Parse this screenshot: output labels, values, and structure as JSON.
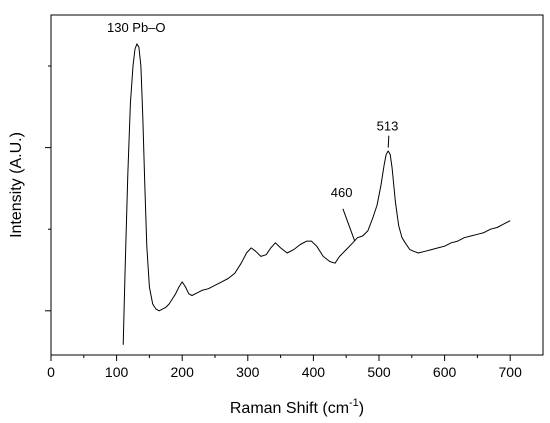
{
  "chart_data": {
    "type": "line",
    "xlabel": "Raman Shift (cm",
    "xlabel_sup": "-1",
    "xlabel_suffix": ")",
    "ylabel": "Intensity (A.U.)",
    "xlim": [
      0,
      750
    ],
    "ylim": [
      0,
      1
    ],
    "xticks": [
      "0",
      "100",
      "200",
      "300",
      "400",
      "500",
      "600",
      "700"
    ],
    "xtick_values": [
      0,
      100,
      200,
      300,
      400,
      500,
      600,
      700
    ],
    "xminor_step": 50,
    "y_major_ticks": [
      0.13,
      0.61
    ],
    "y_minor_ticks": [
      0.37,
      0.85
    ],
    "grid": false,
    "series": [
      {
        "color": "#000000",
        "points": [
          [
            110,
            0.03
          ],
          [
            113,
            0.25
          ],
          [
            117,
            0.53
          ],
          [
            121,
            0.74
          ],
          [
            125,
            0.85
          ],
          [
            128,
            0.9
          ],
          [
            131,
            0.915
          ],
          [
            134,
            0.905
          ],
          [
            137,
            0.85
          ],
          [
            140,
            0.7
          ],
          [
            143,
            0.5
          ],
          [
            146,
            0.32
          ],
          [
            150,
            0.2
          ],
          [
            155,
            0.15
          ],
          [
            160,
            0.135
          ],
          [
            165,
            0.13
          ],
          [
            170,
            0.135
          ],
          [
            175,
            0.14
          ],
          [
            180,
            0.15
          ],
          [
            185,
            0.165
          ],
          [
            190,
            0.18
          ],
          [
            195,
            0.2
          ],
          [
            200,
            0.215
          ],
          [
            205,
            0.2
          ],
          [
            210,
            0.18
          ],
          [
            215,
            0.175
          ],
          [
            220,
            0.18
          ],
          [
            230,
            0.19
          ],
          [
            240,
            0.195
          ],
          [
            250,
            0.205
          ],
          [
            260,
            0.215
          ],
          [
            270,
            0.225
          ],
          [
            280,
            0.24
          ],
          [
            290,
            0.27
          ],
          [
            298,
            0.3
          ],
          [
            305,
            0.315
          ],
          [
            312,
            0.305
          ],
          [
            320,
            0.29
          ],
          [
            328,
            0.295
          ],
          [
            335,
            0.315
          ],
          [
            342,
            0.33
          ],
          [
            350,
            0.315
          ],
          [
            360,
            0.3
          ],
          [
            370,
            0.31
          ],
          [
            380,
            0.325
          ],
          [
            390,
            0.335
          ],
          [
            397,
            0.335
          ],
          [
            405,
            0.32
          ],
          [
            415,
            0.29
          ],
          [
            425,
            0.275
          ],
          [
            433,
            0.27
          ],
          [
            440,
            0.29
          ],
          [
            450,
            0.31
          ],
          [
            460,
            0.33
          ],
          [
            467,
            0.345
          ],
          [
            475,
            0.35
          ],
          [
            483,
            0.365
          ],
          [
            490,
            0.4
          ],
          [
            497,
            0.44
          ],
          [
            503,
            0.5
          ],
          [
            508,
            0.56
          ],
          [
            511,
            0.59
          ],
          [
            514,
            0.6
          ],
          [
            517,
            0.59
          ],
          [
            520,
            0.55
          ],
          [
            525,
            0.45
          ],
          [
            530,
            0.38
          ],
          [
            535,
            0.345
          ],
          [
            540,
            0.33
          ],
          [
            547,
            0.31
          ],
          [
            553,
            0.305
          ],
          [
            560,
            0.3
          ],
          [
            570,
            0.305
          ],
          [
            580,
            0.31
          ],
          [
            590,
            0.315
          ],
          [
            600,
            0.32
          ],
          [
            610,
            0.33
          ],
          [
            620,
            0.335
          ],
          [
            630,
            0.345
          ],
          [
            640,
            0.35
          ],
          [
            650,
            0.355
          ],
          [
            660,
            0.36
          ],
          [
            670,
            0.37
          ],
          [
            680,
            0.375
          ],
          [
            690,
            0.385
          ],
          [
            700,
            0.395
          ]
        ]
      }
    ],
    "annotations": [
      {
        "text": "130 Pb–O",
        "x": 130,
        "y": 0.95,
        "leader": false
      },
      {
        "text": "513",
        "x": 513,
        "y": 0.66,
        "leader": true,
        "leader_from": [
          514,
          0.61
        ],
        "leader_to": [
          515,
          0.645
        ]
      },
      {
        "text": "460",
        "x": 443,
        "y": 0.465,
        "leader": true,
        "leader_from": [
          463,
          0.335
        ],
        "leader_to": [
          445,
          0.43
        ]
      }
    ]
  }
}
